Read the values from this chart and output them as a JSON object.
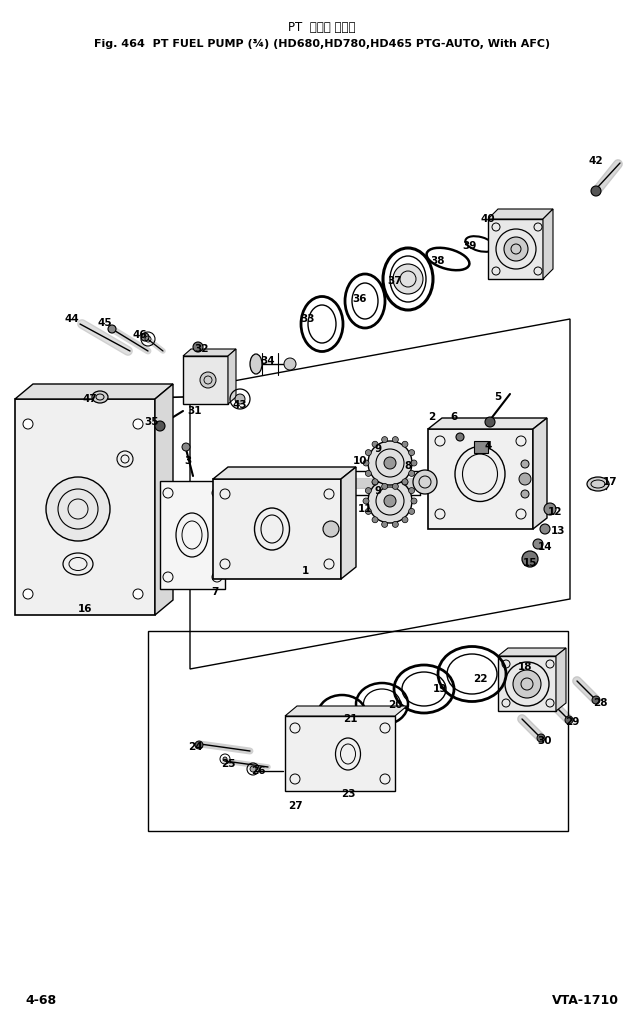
{
  "title_jp": "PT  フェル ボンプ",
  "title_en": "Fig. 464  PT FUEL PUMP (¾) (HD680,HD780,HD465 PTG-AUTO, With AFC)",
  "footer_left": "4-68",
  "footer_right": "VTA-1710",
  "bg_color": "#ffffff",
  "lc": "#000000",
  "tc": "#000000"
}
